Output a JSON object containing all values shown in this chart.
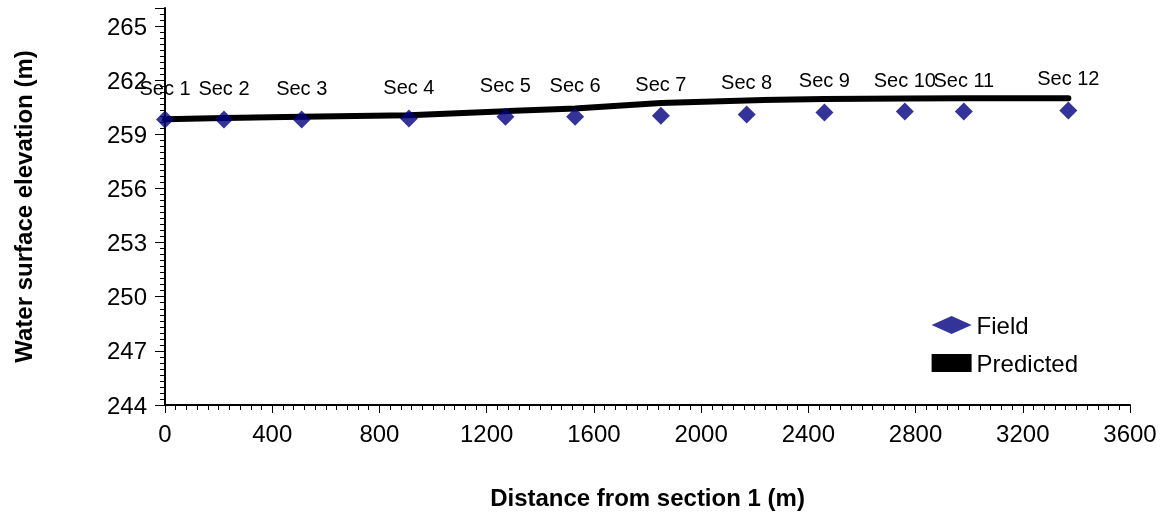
{
  "chart_data": {
    "type": "scatter",
    "xlabel": "Distance from section 1 (m)",
    "ylabel": "Water surface elevation (m)",
    "xlim": [
      0,
      3600
    ],
    "xticks": [
      0,
      400,
      800,
      1200,
      1600,
      2000,
      2400,
      2800,
      3200,
      3600
    ],
    "ylim": [
      244,
      266
    ],
    "yticks": [
      244,
      247,
      250,
      253,
      256,
      259,
      262,
      265
    ],
    "grid": false,
    "legend": "bottom right",
    "series": [
      {
        "name": "Field",
        "marker": "diamond",
        "color": "#000080",
        "x": [
          0,
          220,
          510,
          910,
          1270,
          1530,
          1850,
          2170,
          2460,
          2760,
          2980,
          3370
        ],
        "values": [
          259.82,
          259.82,
          259.82,
          259.87,
          259.97,
          259.97,
          260.03,
          260.1,
          260.21,
          260.26,
          260.26,
          260.32
        ]
      },
      {
        "name": "Predicted",
        "type": "line",
        "marker": "none",
        "line_style": "solid",
        "color": "#000000",
        "x": [
          0,
          220,
          510,
          910,
          1270,
          1530,
          1850,
          2170,
          2460,
          2760,
          2980,
          3370
        ],
        "values": [
          259.84,
          259.9,
          259.97,
          260.06,
          260.28,
          260.43,
          260.74,
          260.88,
          260.96,
          260.99,
          261,
          261
        ]
      }
    ],
    "annotations": [
      {
        "text": "Sec 1",
        "x": 0,
        "y": 259.82
      },
      {
        "text": "Sec 2",
        "x": 220,
        "y": 259.82
      },
      {
        "text": "Sec 3",
        "x": 510,
        "y": 259.82
      },
      {
        "text": "Sec 4",
        "x": 910,
        "y": 259.87
      },
      {
        "text": "Sec 5",
        "x": 1270,
        "y": 259.97
      },
      {
        "text": "Sec 6",
        "x": 1530,
        "y": 259.97
      },
      {
        "text": "Sec 7",
        "x": 1850,
        "y": 260.03
      },
      {
        "text": "Sec 8",
        "x": 2170,
        "y": 260.1
      },
      {
        "text": "Sec 9",
        "x": 2460,
        "y": 260.21
      },
      {
        "text": "Sec 10",
        "x": 2760,
        "y": 260.26
      },
      {
        "text": "Sec 11",
        "x": 2980,
        "y": 260.26
      },
      {
        "text": "Sec 12",
        "x": 3370,
        "y": 260.32
      }
    ]
  }
}
